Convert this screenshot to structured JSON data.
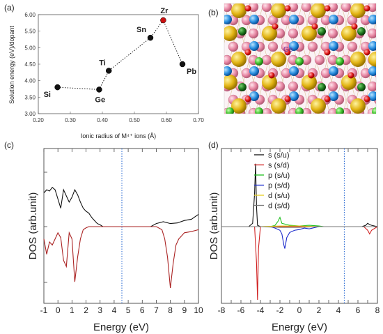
{
  "panels": {
    "a": {
      "letter": "(a)"
    },
    "b": {
      "letter": "(b)",
      "atom_label": "Ge"
    },
    "c": {
      "letter": "(c)"
    },
    "d": {
      "letter": "(d)"
    }
  },
  "chart_data": [
    {
      "panel": "a",
      "type": "scatter",
      "xlabel": "Ionic radius of M⁴⁺ ions (Å)",
      "ylabel": "Solution energy (eV)/dopant",
      "xlim": [
        0.2,
        0.7
      ],
      "ylim": [
        3.0,
        6.0
      ],
      "xticks": [
        "0.20",
        "0.30",
        "0.40",
        "0.50",
        "0.60",
        "0.70"
      ],
      "yticks": [
        "3.00",
        "3.50",
        "4.00",
        "4.50",
        "5.00",
        "5.50",
        "6.00"
      ],
      "grid": false,
      "points": [
        {
          "label": "Si",
          "x": 0.26,
          "y": 3.8,
          "color": "#111111"
        },
        {
          "label": "Ge",
          "x": 0.39,
          "y": 3.73,
          "color": "#111111"
        },
        {
          "label": "Ti",
          "x": 0.42,
          "y": 4.3,
          "color": "#111111"
        },
        {
          "label": "Sn",
          "x": 0.55,
          "y": 5.3,
          "color": "#111111"
        },
        {
          "label": "Zr",
          "x": 0.59,
          "y": 5.83,
          "color": "#cc1111"
        },
        {
          "label": "Pb",
          "x": 0.65,
          "y": 4.5,
          "color": "#111111"
        }
      ]
    },
    {
      "panel": "c",
      "type": "line",
      "xlabel": "Energy (eV)",
      "ylabel": "DOS (arb.unit)",
      "xlim": [
        -1,
        10
      ],
      "xticks": [
        "-1",
        "0",
        "1",
        "2",
        "3",
        "4",
        "5",
        "6",
        "7",
        "8",
        "9",
        "10"
      ],
      "fermi_level": 4.55,
      "series": [
        {
          "color": "#111111",
          "x": [
            -1,
            -0.8,
            -0.6,
            -0.4,
            -0.2,
            0,
            0.2,
            0.4,
            0.6,
            0.8,
            1.0,
            1.2,
            1.4,
            1.6,
            1.8,
            2.0,
            2.2,
            2.4,
            2.6,
            2.8,
            3.0,
            3.2,
            6.6,
            7.0,
            7.5,
            8.0,
            8.5,
            9.0,
            9.5,
            10
          ],
          "y": [
            0.55,
            0.6,
            0.58,
            0.64,
            0.6,
            0.45,
            0.3,
            0.6,
            0.5,
            0.4,
            0.48,
            0.6,
            0.52,
            0.4,
            0.3,
            0.25,
            0.22,
            0.15,
            0.1,
            0.05,
            0.03,
            0.0,
            0.0,
            0.05,
            0.08,
            0.05,
            0.06,
            0.1,
            0.12,
            0.2
          ]
        },
        {
          "color": "#aa2222",
          "x": [
            -1,
            -0.8,
            -0.6,
            -0.4,
            -0.2,
            0,
            0.2,
            0.4,
            0.6,
            0.8,
            1.0,
            1.2,
            1.4,
            1.6,
            1.8,
            2.0,
            2.2,
            2.4,
            2.6,
            3.0,
            5.0,
            6.0,
            7.0,
            7.4,
            7.6,
            7.8,
            8.0,
            8.2,
            8.4,
            8.6,
            8.8,
            9.0,
            9.5,
            10
          ],
          "y": [
            -0.2,
            -0.45,
            -0.25,
            -0.3,
            -0.2,
            -0.1,
            -0.18,
            -0.55,
            -0.65,
            -0.1,
            -0.2,
            -0.9,
            -0.5,
            -0.2,
            -0.05,
            -0.02,
            0.0,
            0.0,
            0.0,
            0.0,
            0.0,
            0.0,
            0.0,
            -0.05,
            -0.2,
            -0.5,
            -1.0,
            -0.6,
            -0.3,
            -0.2,
            -0.15,
            -0.1,
            -0.08,
            -0.05
          ]
        }
      ]
    },
    {
      "panel": "d",
      "type": "line",
      "xlabel": "Energy (eV)",
      "ylabel": "DOS (arb.unit)",
      "xlim": [
        -8,
        8
      ],
      "xticks": [
        "-8",
        "-7",
        "-6",
        "-5",
        "-4",
        "-3",
        "-2",
        "-1",
        "0",
        "1",
        "2",
        "3",
        "4",
        "5",
        "6",
        "7",
        "8"
      ],
      "fermi_level": 4.6,
      "legend_position": "top-left",
      "series": [
        {
          "name": "s (s/u)",
          "color": "#111111",
          "x": [
            -8,
            -5.2,
            -4.8,
            -4.6,
            -4.5,
            -4.4,
            -4.3,
            -4.0,
            6.4,
            6.8,
            7.0,
            7.2,
            7.4,
            8
          ],
          "y": [
            0,
            0,
            0.05,
            0.5,
            0.95,
            0.3,
            0.02,
            0,
            0,
            0.02,
            0.05,
            0.03,
            0.02,
            0
          ]
        },
        {
          "name": "s (s/d)",
          "color": "#d02020",
          "x": [
            -8,
            -4.6,
            -4.4,
            -4.3,
            -4.2,
            -4.0,
            6.6,
            7.0,
            7.2,
            7.4,
            8
          ],
          "y": [
            0,
            0,
            -0.5,
            -1.0,
            -0.3,
            0,
            0,
            -0.05,
            -0.1,
            -0.05,
            0
          ]
        },
        {
          "name": "p (s/u)",
          "color": "#20c020",
          "x": [
            -8,
            -3.0,
            -2.5,
            -2.2,
            -2.0,
            -1.8,
            -1.0,
            0,
            1.0,
            2.0,
            2.5,
            8
          ],
          "y": [
            0,
            0,
            0.02,
            0.08,
            0.14,
            0.05,
            0.02,
            0.01,
            0.02,
            0.01,
            0,
            0
          ]
        },
        {
          "name": "p (s/d)",
          "color": "#1a2acc",
          "x": [
            -8,
            -3.0,
            -2.5,
            -2.0,
            -1.8,
            -1.6,
            -1.5,
            -1.3,
            -1.0,
            -0.5,
            0,
            0.5,
            1.0,
            2.0,
            8
          ],
          "y": [
            0,
            0,
            -0.02,
            -0.05,
            -0.1,
            -0.25,
            -0.3,
            -0.15,
            -0.08,
            -0.05,
            -0.04,
            -0.02,
            -0.03,
            0,
            0
          ]
        },
        {
          "name": "d (s/u)",
          "color": "#e8d020",
          "x": [
            -8,
            -4.0,
            -2.0,
            0,
            2.0,
            8
          ],
          "y": [
            0,
            0,
            0.01,
            0.01,
            0,
            0
          ]
        },
        {
          "name": "d (s/d)",
          "color": "#777777",
          "x": [
            -8,
            -4.0,
            -2.0,
            0,
            2.0,
            8
          ],
          "y": [
            0,
            0,
            -0.01,
            -0.01,
            0,
            0
          ]
        }
      ]
    }
  ]
}
